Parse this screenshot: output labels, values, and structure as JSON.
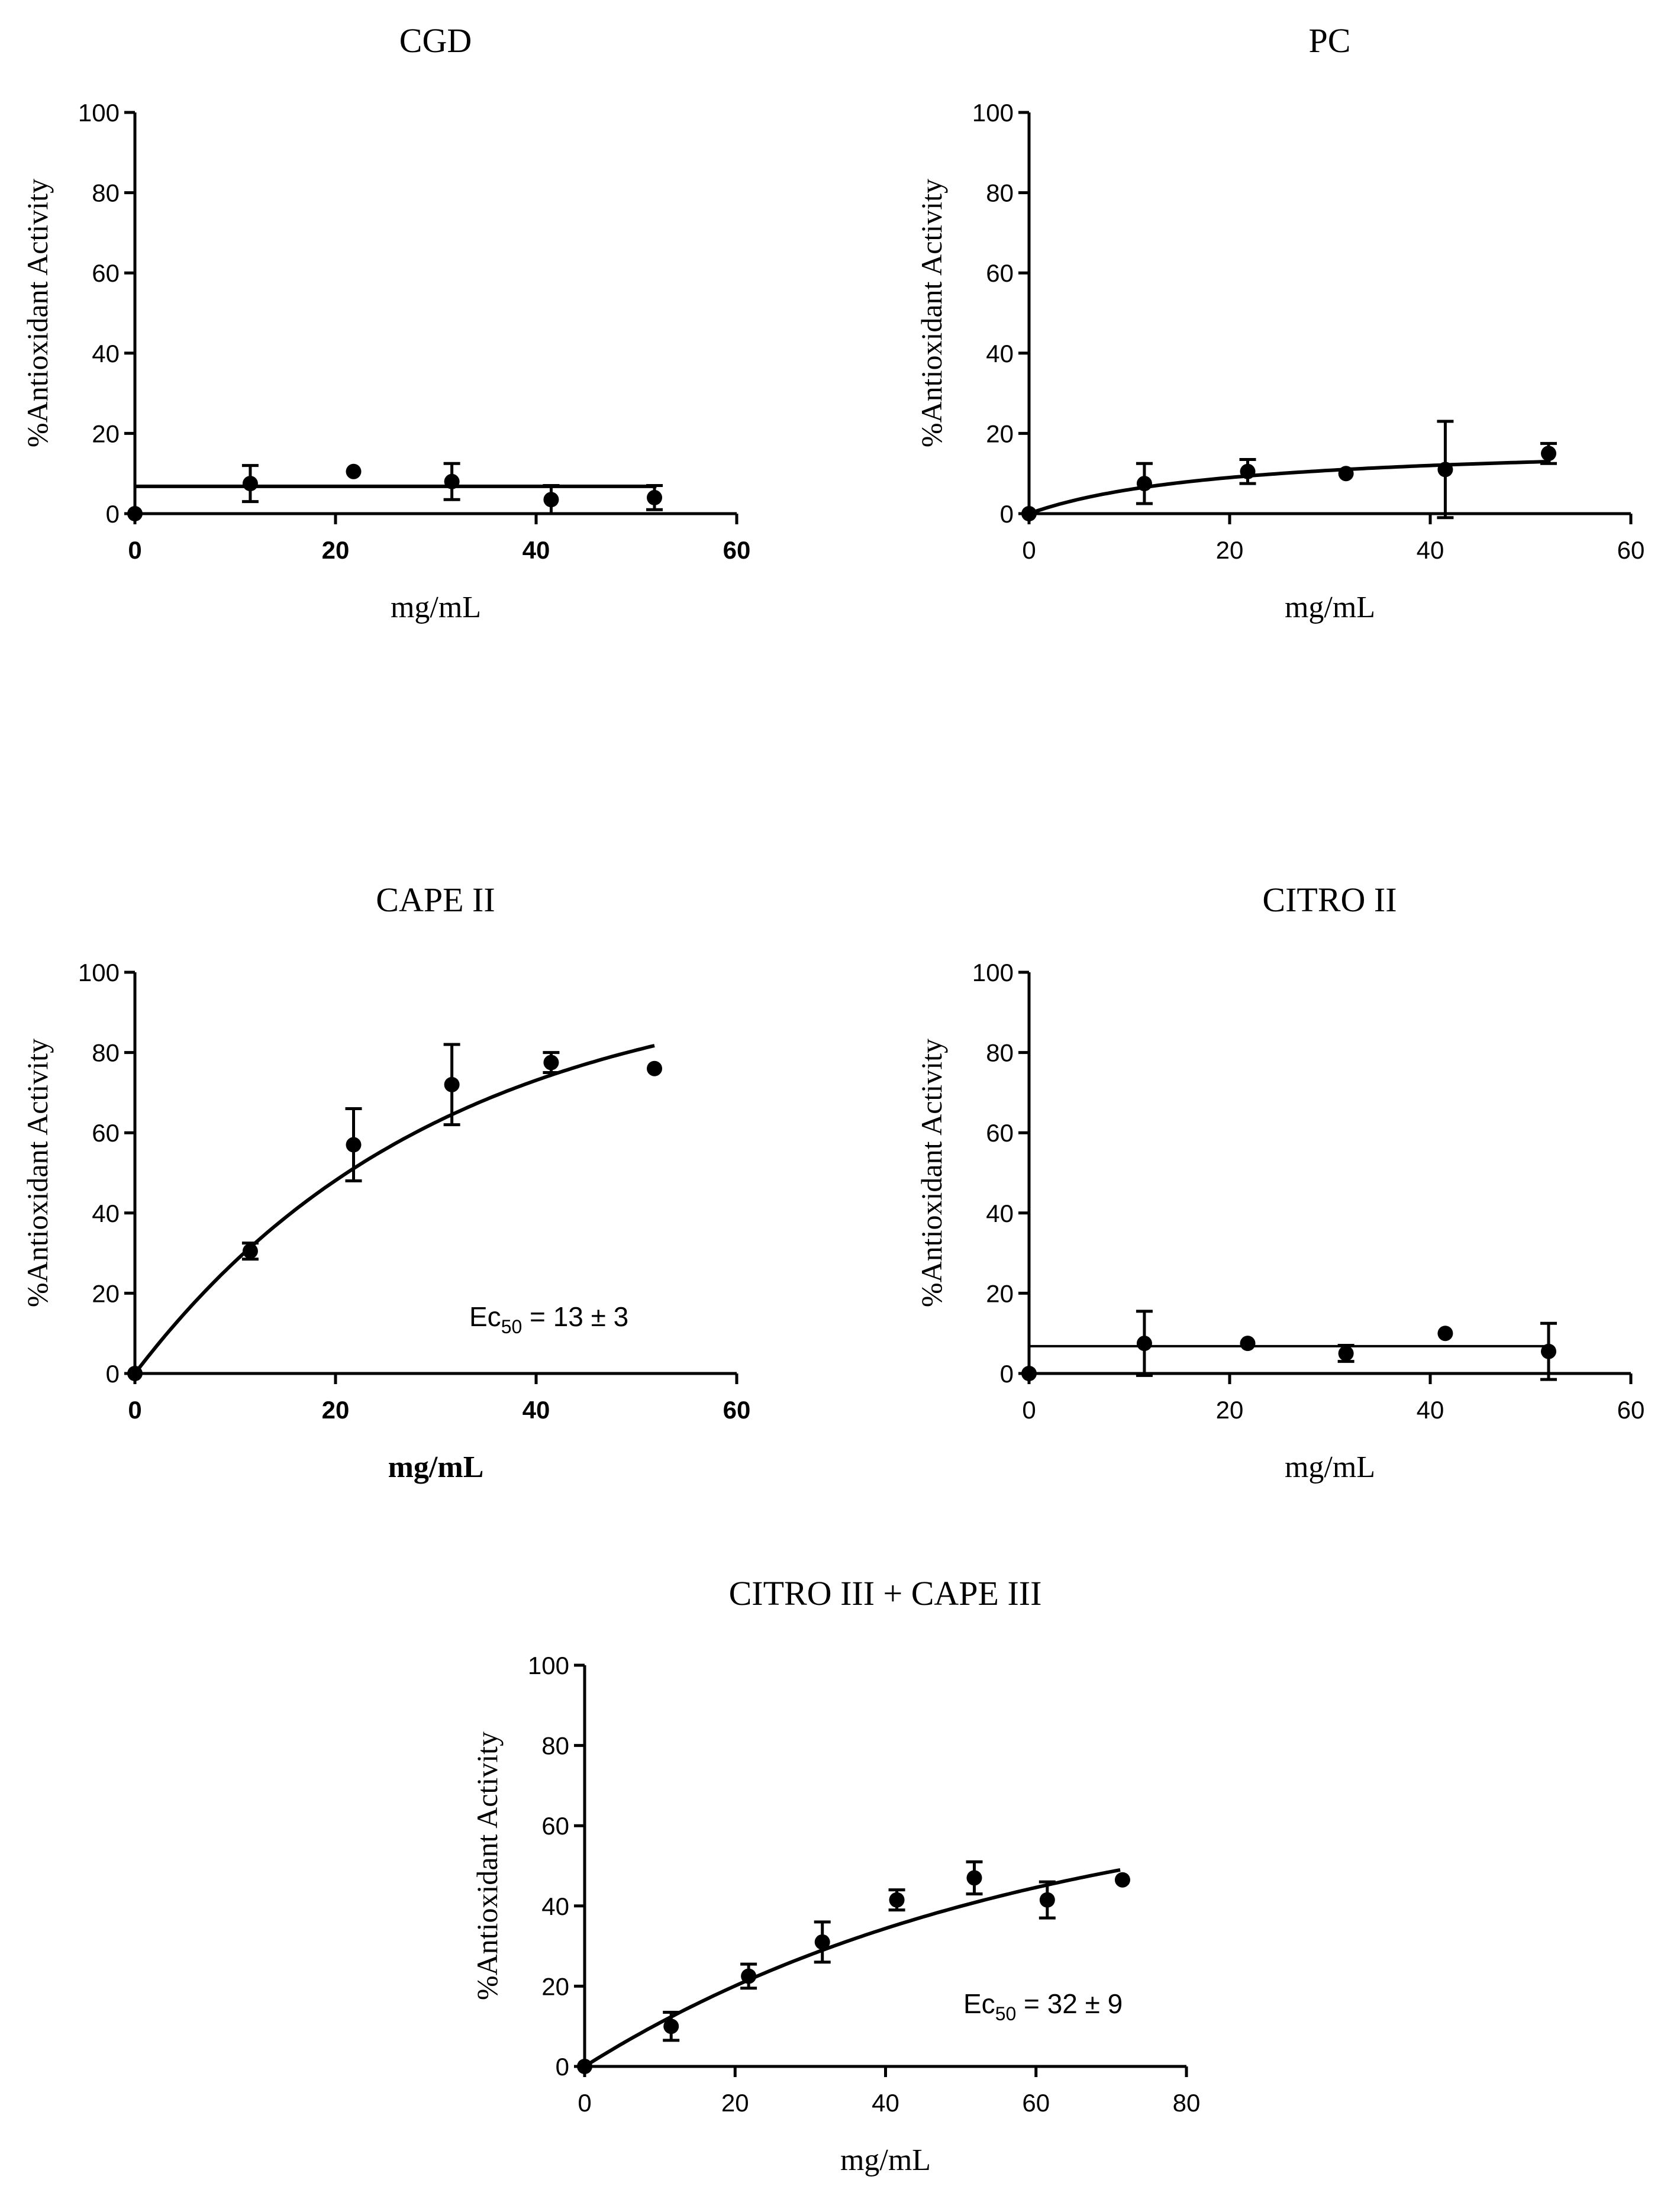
{
  "figure": {
    "panels_count": 5
  },
  "chart_data": [
    {
      "id": "cgd",
      "type": "scatter",
      "title": "CGD",
      "xlabel": "mg/mL",
      "ylabel": "%Antioxidant Activity",
      "xlim": [
        0,
        60
      ],
      "ylim": [
        0,
        100
      ],
      "xticks": [
        0,
        20,
        40,
        60
      ],
      "yticks": [
        0,
        20,
        40,
        60,
        80,
        100
      ],
      "bold_x_ticks": true,
      "bold_x_label": false,
      "points": [
        {
          "x": 0,
          "y": 0,
          "err": 0
        },
        {
          "x": 11.5,
          "y": 7.5,
          "err": 4.5
        },
        {
          "x": 21.8,
          "y": 10.5,
          "err": 0
        },
        {
          "x": 31.6,
          "y": 8,
          "err": 4.5
        },
        {
          "x": 41.5,
          "y": 3.5,
          "err": 3.5
        },
        {
          "x": 51.8,
          "y": 4,
          "err": 3
        }
      ],
      "fit": {
        "type": "constant",
        "value": 6.8,
        "from": 0,
        "to": 52
      },
      "annotation": null,
      "grid": false
    },
    {
      "id": "pc",
      "type": "scatter",
      "title": "PC",
      "xlabel": "mg/mL",
      "ylabel": "%Antioxidant Activity",
      "xlim": [
        0,
        60
      ],
      "ylim": [
        0,
        100
      ],
      "xticks": [
        0,
        20,
        40,
        60
      ],
      "yticks": [
        0,
        20,
        40,
        60,
        80,
        100
      ],
      "bold_x_ticks": false,
      "bold_x_label": false,
      "points": [
        {
          "x": 0,
          "y": 0,
          "err": 0
        },
        {
          "x": 11.5,
          "y": 7.5,
          "err": 5
        },
        {
          "x": 21.8,
          "y": 10.5,
          "err": 3
        },
        {
          "x": 31.6,
          "y": 10,
          "err": 0
        },
        {
          "x": 41.5,
          "y": 11,
          "err": 12
        },
        {
          "x": 51.8,
          "y": 15,
          "err": 2.5
        }
      ],
      "fit": {
        "type": "hyperbola",
        "max": 18,
        "ec50": 20,
        "from": 0,
        "to": 52
      },
      "annotation": null,
      "grid": false
    },
    {
      "id": "cape2",
      "type": "scatter",
      "title": "CAPE II",
      "xlabel": "mg/mL",
      "ylabel": "%Antioxidant Activity",
      "xlim": [
        0,
        60
      ],
      "ylim": [
        0,
        100
      ],
      "xticks": [
        0,
        20,
        40,
        60
      ],
      "yticks": [
        0,
        20,
        40,
        60,
        80,
        100
      ],
      "bold_x_ticks": true,
      "bold_x_label": true,
      "points": [
        {
          "x": 0,
          "y": 0,
          "err": 0
        },
        {
          "x": 11.5,
          "y": 30.5,
          "err": 2
        },
        {
          "x": 21.8,
          "y": 57,
          "err": 9
        },
        {
          "x": 31.6,
          "y": 72,
          "err": 10
        },
        {
          "x": 41.5,
          "y": 77.5,
          "err": 2.5
        },
        {
          "x": 51.8,
          "y": 76,
          "err": 0
        }
      ],
      "fit": {
        "type": "exponential",
        "max": 100,
        "k": 0.0328,
        "from": 0,
        "to": 51.8
      },
      "annotation": {
        "prefix": "Ec",
        "subscript": "50",
        "suffix": " = 13 ± 3"
      },
      "grid": false
    },
    {
      "id": "citro2",
      "type": "scatter",
      "title": "CITRO II",
      "xlabel": "mg/mL",
      "ylabel": "%Antioxidant Activity",
      "xlim": [
        0,
        60
      ],
      "ylim": [
        0,
        100
      ],
      "xticks": [
        0,
        20,
        40,
        60
      ],
      "yticks": [
        0,
        20,
        40,
        60,
        80,
        100
      ],
      "bold_x_ticks": false,
      "bold_x_label": false,
      "points": [
        {
          "x": 0,
          "y": 0,
          "err": 0
        },
        {
          "x": 11.5,
          "y": 7.5,
          "err": 8
        },
        {
          "x": 21.8,
          "y": 7.5,
          "err": 0
        },
        {
          "x": 31.6,
          "y": 5,
          "err": 2
        },
        {
          "x": 41.5,
          "y": 10,
          "err": 0
        },
        {
          "x": 51.8,
          "y": 5.5,
          "err": 7
        }
      ],
      "fit": {
        "type": "constant",
        "value": 6.8,
        "from": 0,
        "to": 52
      },
      "annotation": null,
      "grid": false
    },
    {
      "id": "citro3cape3",
      "type": "scatter",
      "title": "CITRO III + CAPE III",
      "xlabel": "mg/mL",
      "ylabel": "%Antioxidant Activity",
      "xlim": [
        0,
        80
      ],
      "ylim": [
        0,
        100
      ],
      "xticks": [
        0,
        20,
        40,
        60,
        80
      ],
      "yticks": [
        0,
        20,
        40,
        60,
        80,
        100
      ],
      "bold_x_ticks": false,
      "bold_x_label": false,
      "points": [
        {
          "x": 0,
          "y": 0,
          "err": 0
        },
        {
          "x": 11.5,
          "y": 10,
          "err": 3.5
        },
        {
          "x": 21.8,
          "y": 22.5,
          "err": 3
        },
        {
          "x": 31.6,
          "y": 31,
          "err": 5
        },
        {
          "x": 41.5,
          "y": 41.5,
          "err": 2.5
        },
        {
          "x": 51.8,
          "y": 47,
          "err": 4
        },
        {
          "x": 61.5,
          "y": 41.5,
          "err": 4.5
        },
        {
          "x": 71.5,
          "y": 46.5,
          "err": 0
        }
      ],
      "fit": {
        "type": "exponential",
        "max": 70,
        "k": 0.0169,
        "from": 0,
        "to": 71.2
      },
      "annotation": {
        "prefix": "Ec",
        "subscript": "50",
        "suffix": " = 32 ± 9"
      },
      "grid": false
    }
  ]
}
